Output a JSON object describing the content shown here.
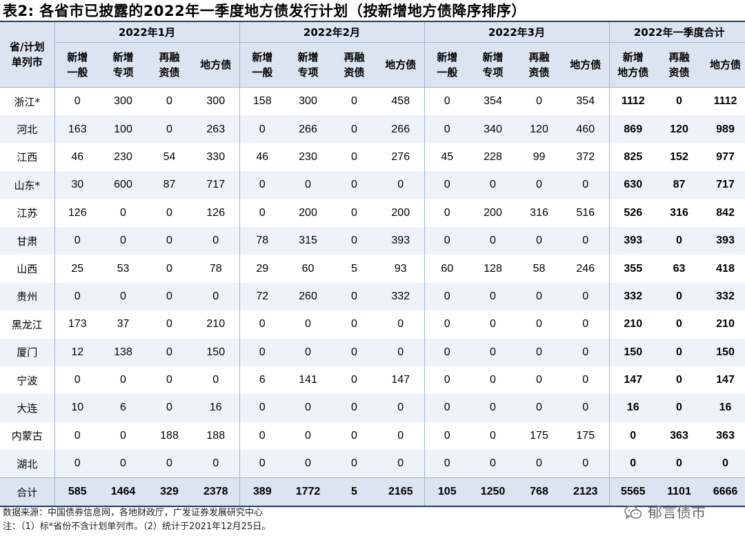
{
  "title": "表2:  各省市已披露的2022年一季度地方债发行计划（按新增地方债降序排序）",
  "header": {
    "corner": [
      "省/计划",
      "单列市"
    ],
    "groups": [
      "2022年1月",
      "2022年2月",
      "2022年3月",
      "2022年一季度合计"
    ],
    "month_cols": [
      [
        "新增",
        "一般"
      ],
      [
        "新增",
        "专项"
      ],
      [
        "再融",
        "资债"
      ],
      [
        "地方债"
      ]
    ],
    "total_cols": [
      [
        "新增",
        "地方债"
      ],
      [
        "再融",
        "资债"
      ],
      [
        "地方债"
      ]
    ]
  },
  "rows": [
    {
      "region": "浙江*",
      "values": [
        "0",
        "300",
        "0",
        "300",
        "158",
        "300",
        "0",
        "458",
        "0",
        "354",
        "0",
        "354",
        "1112",
        "0",
        "1112"
      ]
    },
    {
      "region": "河北",
      "values": [
        "163",
        "100",
        "0",
        "263",
        "0",
        "266",
        "0",
        "266",
        "0",
        "340",
        "120",
        "460",
        "869",
        "120",
        "989"
      ]
    },
    {
      "region": "江西",
      "values": [
        "46",
        "230",
        "54",
        "330",
        "46",
        "230",
        "0",
        "276",
        "45",
        "228",
        "99",
        "372",
        "825",
        "152",
        "977"
      ]
    },
    {
      "region": "山东*",
      "values": [
        "30",
        "600",
        "87",
        "717",
        "0",
        "0",
        "0",
        "0",
        "0",
        "0",
        "0",
        "0",
        "630",
        "87",
        "717"
      ]
    },
    {
      "region": "江苏",
      "values": [
        "126",
        "0",
        "0",
        "126",
        "0",
        "200",
        "0",
        "200",
        "0",
        "200",
        "316",
        "516",
        "526",
        "316",
        "842"
      ]
    },
    {
      "region": "甘肃",
      "values": [
        "0",
        "0",
        "0",
        "0",
        "78",
        "315",
        "0",
        "393",
        "0",
        "0",
        "0",
        "0",
        "393",
        "0",
        "393"
      ]
    },
    {
      "region": "山西",
      "values": [
        "25",
        "53",
        "0",
        "78",
        "29",
        "60",
        "5",
        "93",
        "60",
        "128",
        "58",
        "246",
        "355",
        "63",
        "418"
      ]
    },
    {
      "region": "贵州",
      "values": [
        "0",
        "0",
        "0",
        "0",
        "72",
        "260",
        "0",
        "332",
        "0",
        "0",
        "0",
        "0",
        "332",
        "0",
        "332"
      ]
    },
    {
      "region": "黑龙江",
      "values": [
        "173",
        "37",
        "0",
        "210",
        "0",
        "0",
        "0",
        "0",
        "0",
        "0",
        "0",
        "0",
        "210",
        "0",
        "210"
      ]
    },
    {
      "region": "厦门",
      "values": [
        "12",
        "138",
        "0",
        "150",
        "0",
        "0",
        "0",
        "0",
        "0",
        "0",
        "0",
        "0",
        "150",
        "0",
        "150"
      ]
    },
    {
      "region": "宁波",
      "values": [
        "0",
        "0",
        "0",
        "0",
        "6",
        "141",
        "0",
        "147",
        "0",
        "0",
        "0",
        "0",
        "147",
        "0",
        "147"
      ]
    },
    {
      "region": "大连",
      "values": [
        "10",
        "6",
        "0",
        "16",
        "0",
        "0",
        "0",
        "0",
        "0",
        "0",
        "0",
        "0",
        "16",
        "0",
        "16"
      ]
    },
    {
      "region": "内蒙古",
      "values": [
        "0",
        "0",
        "188",
        "188",
        "0",
        "0",
        "0",
        "0",
        "0",
        "0",
        "175",
        "175",
        "0",
        "363",
        "363"
      ]
    },
    {
      "region": "湖北",
      "values": [
        "0",
        "0",
        "0",
        "0",
        "0",
        "0",
        "0",
        "0",
        "0",
        "0",
        "0",
        "0",
        "0",
        "0",
        "0"
      ]
    }
  ],
  "total": {
    "region": "合计",
    "values": [
      "585",
      "1464",
      "329",
      "2378",
      "389",
      "1772",
      "5",
      "2165",
      "105",
      "1250",
      "768",
      "2123",
      "5565",
      "1101",
      "6666"
    ]
  },
  "notes": {
    "source": "数据来源：中国债券信息网，各地财政厅，广发证券发展研究中心",
    "note": "注：（1）标*省份不含计划单列市。（2）统计于2021年12月25日。"
  },
  "watermark": {
    "text": "郁言债市",
    "icon": "wechat-icon"
  }
}
